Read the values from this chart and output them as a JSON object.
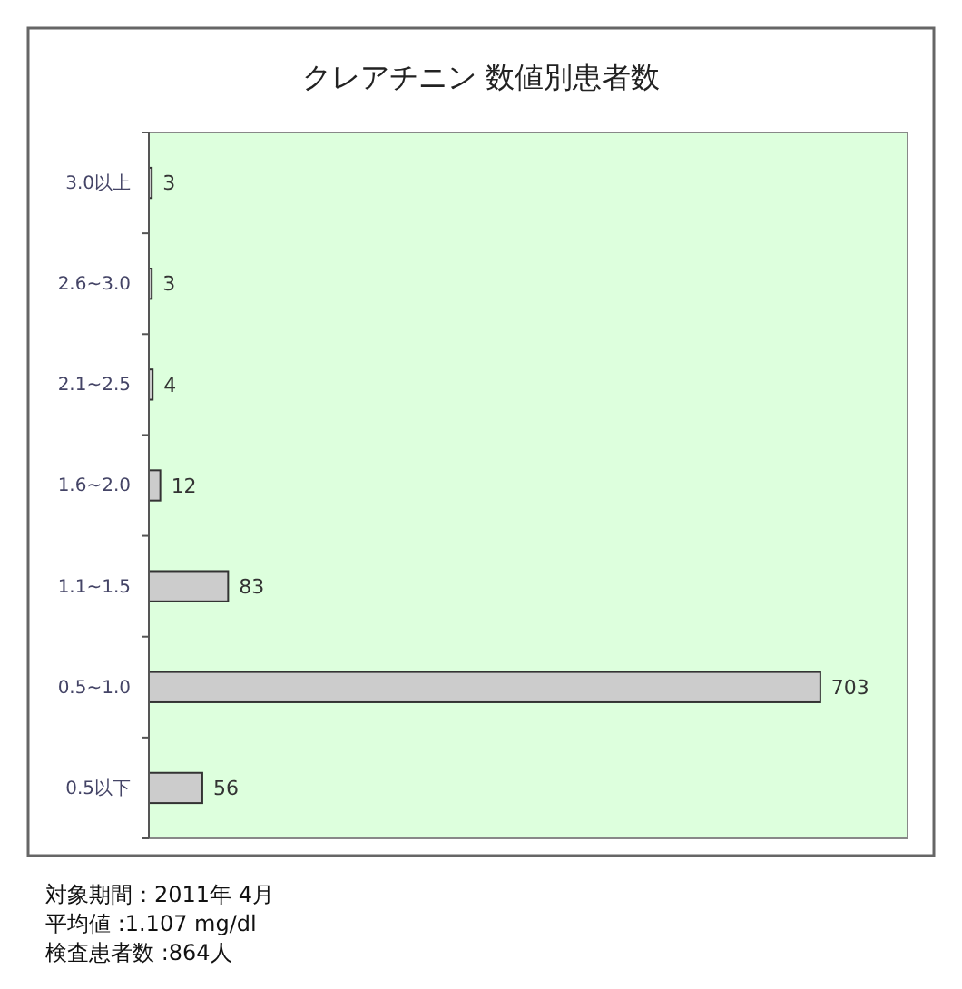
{
  "chart_data": {
    "type": "bar",
    "orientation": "horizontal",
    "title": "クレアチニン 数値別患者数",
    "categories": [
      "3.0以上",
      "2.6~3.0",
      "2.1~2.5",
      "1.6~2.0",
      "1.1~1.5",
      "0.5~1.0",
      "0.5以下"
    ],
    "values": [
      3,
      3,
      4,
      12,
      83,
      703,
      56
    ],
    "color": "#cccccc",
    "data_labels": true,
    "annotations": [
      "対象期間：2011年 4月",
      "平均値 :1.107 mg/dl",
      "検査患者数 :864人"
    ]
  }
}
